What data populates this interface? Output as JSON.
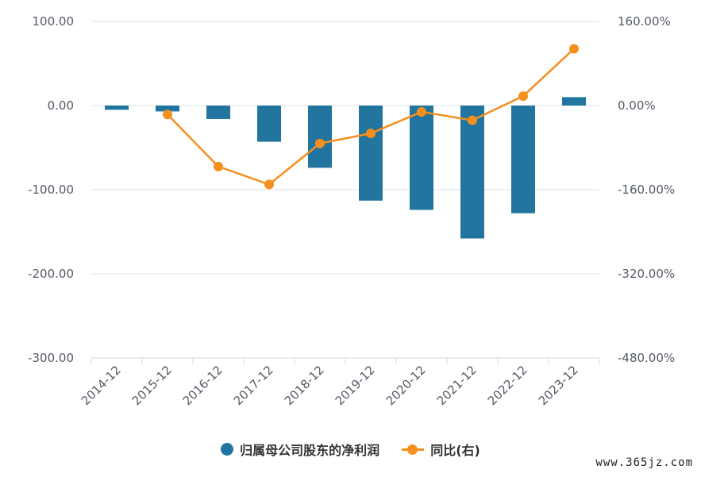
{
  "chart_data": {
    "type": "bar",
    "categories": [
      "2014-12",
      "2015-12",
      "2016-12",
      "2017-12",
      "2018-12",
      "2019-12",
      "2020-12",
      "2021-12",
      "2022-12",
      "2023-12"
    ],
    "series": [
      {
        "name": "归属母公司股东的净利润",
        "kind": "bar",
        "axis": "left",
        "values": [
          -5,
          -7,
          -16,
          -43,
          -74,
          -113,
          -124,
          -158,
          -128,
          10
        ]
      },
      {
        "name": "同比(右)",
        "kind": "line",
        "axis": "right",
        "values": [
          null,
          -17,
          -116,
          -150,
          -72,
          -53,
          -12,
          -28,
          18,
          108
        ]
      }
    ],
    "left_axis": {
      "ylim": [
        -300,
        100
      ],
      "ticks": [
        "100.00",
        "0.00",
        "-100.00",
        "-200.00",
        "-300.00"
      ]
    },
    "right_axis": {
      "ylim": [
        -480,
        160
      ],
      "ticks": [
        "160.00%",
        "0.00%",
        "-160.00%",
        "-320.00%",
        "-480.00%"
      ]
    },
    "xlabel": "",
    "ylabel": "",
    "grid": true,
    "legend_position": "bottom-center",
    "colors": {
      "bar": "#21759f",
      "line": "#f58f1e"
    }
  },
  "legend": {
    "bar_label": "归属母公司股东的净利润",
    "line_label": "同比(右)"
  },
  "watermark": "www.365jz.com"
}
